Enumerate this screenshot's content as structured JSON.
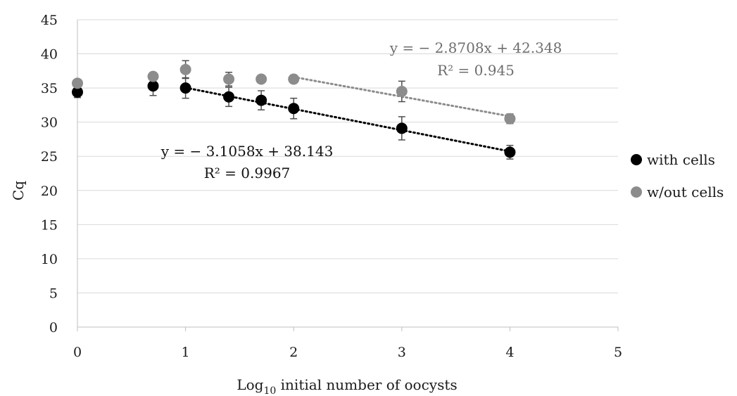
{
  "chart_data": {
    "type": "scatter",
    "xlabel": {
      "prefix": "Log",
      "sub": "10",
      "suffix": " initial number of oocysts"
    },
    "ylabel": "Cq",
    "xlim": [
      0,
      5
    ],
    "ylim": [
      0,
      45
    ],
    "xticks": [
      0,
      1,
      2,
      3,
      4,
      5
    ],
    "yticks": [
      0,
      5,
      10,
      15,
      20,
      25,
      30,
      35,
      40,
      45
    ],
    "grid": "horizontal",
    "legend_position": "right",
    "series": [
      {
        "name": "with cells",
        "color": "#000000",
        "points": [
          {
            "x": 0,
            "y": 34.4,
            "err": 0.8
          },
          {
            "x": 0.7,
            "y": 35.3,
            "err": 1.4
          },
          {
            "x": 1,
            "y": 35.0,
            "err": 1.5
          },
          {
            "x": 1.4,
            "y": 33.7,
            "err": 1.4
          },
          {
            "x": 1.7,
            "y": 33.2,
            "err": 1.4
          },
          {
            "x": 2,
            "y": 32.0,
            "err": 1.5
          },
          {
            "x": 3,
            "y": 29.1,
            "err": 1.7
          },
          {
            "x": 4,
            "y": 25.6,
            "err": 1.0
          }
        ],
        "trendline": {
          "x_range": [
            1,
            4
          ],
          "slope": -3.1058,
          "intercept": 38.143,
          "equation": "y = − 3.1058x + 38.143",
          "r2": "R² = 0.9967"
        }
      },
      {
        "name": "w/out cells",
        "color": "#8c8c8c",
        "points": [
          {
            "x": 0,
            "y": 35.7,
            "err": 0
          },
          {
            "x": 0.7,
            "y": 36.7,
            "err": 0
          },
          {
            "x": 1,
            "y": 37.7,
            "err": 1.3
          },
          {
            "x": 1.4,
            "y": 36.3,
            "err": 1.0
          },
          {
            "x": 1.7,
            "y": 36.3,
            "err": 0.5
          },
          {
            "x": 2,
            "y": 36.3,
            "err": 0.6
          },
          {
            "x": 3,
            "y": 34.5,
            "err": 1.5
          },
          {
            "x": 4,
            "y": 30.5,
            "err": 0.7
          }
        ],
        "trendline": {
          "x_range": [
            2,
            4
          ],
          "slope": -2.8708,
          "intercept": 42.348,
          "equation": "y = − 2.8708x + 42.348",
          "r2": "R² = 0.945"
        }
      }
    ]
  }
}
